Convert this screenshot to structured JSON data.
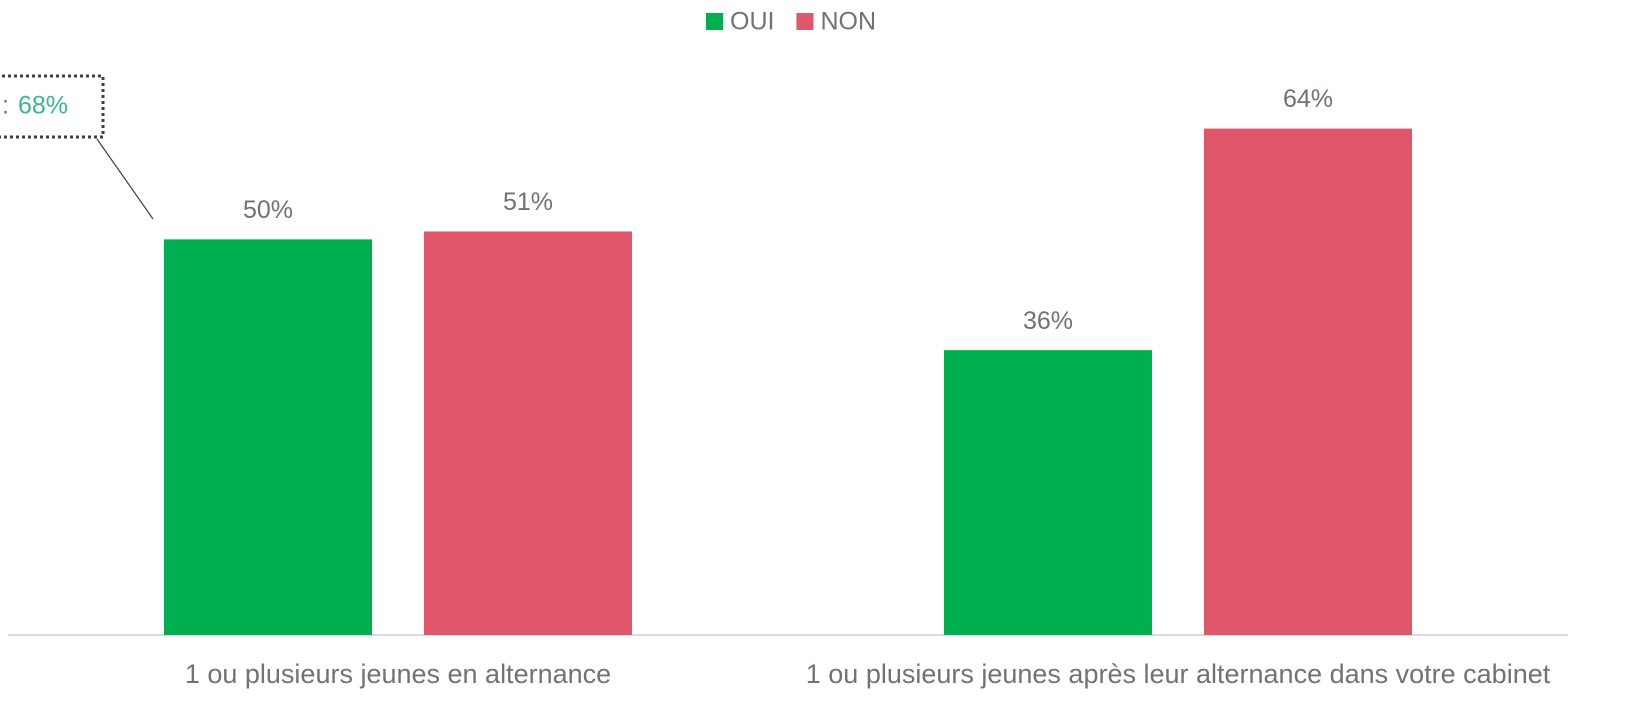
{
  "chart_data": {
    "type": "bar",
    "categories": [
      "1 ou plusieurs jeunes en alternance",
      "1 ou plusieurs jeunes après leur alternance dans votre cabinet"
    ],
    "series": [
      {
        "name": "OUI",
        "color": "#00b050",
        "values": [
          50,
          36
        ],
        "value_labels": [
          "50%",
          "36%"
        ]
      },
      {
        "name": "NON",
        "color": "#e0566b",
        "values": [
          51,
          64
        ],
        "value_labels": [
          "51%",
          "64%"
        ]
      }
    ],
    "ylim": [
      0,
      80
    ],
    "legend": "top",
    "annotation": {
      "prefix": ":",
      "text": "68%"
    }
  }
}
